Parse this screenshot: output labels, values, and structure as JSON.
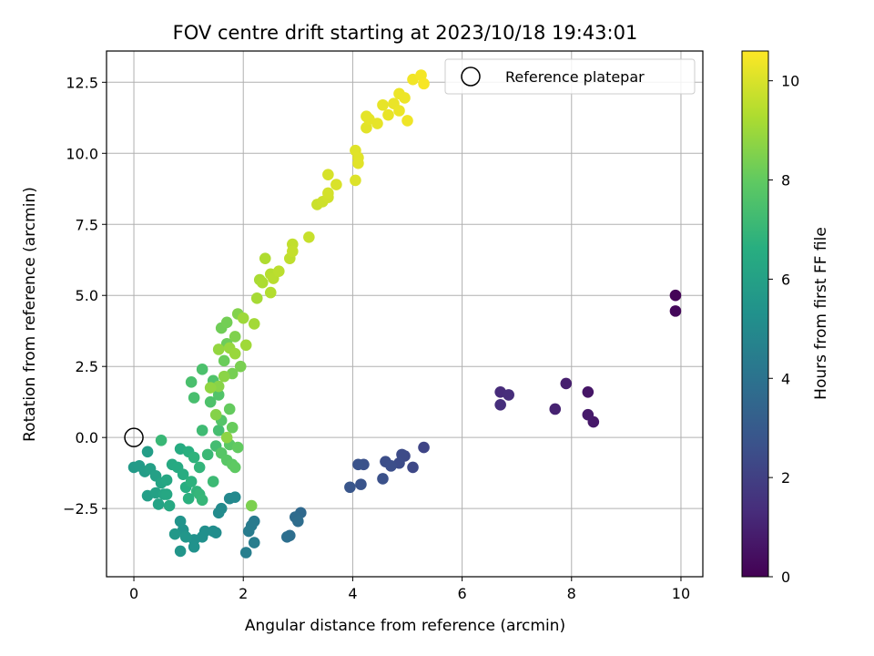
{
  "chart_data": {
    "type": "scatter",
    "title": "FOV centre drift starting at 2023/10/18 19:43:01",
    "xlabel": "Angular distance from reference (arcmin)",
    "ylabel": "Rotation from reference (arcmin)",
    "colorbar_label": "Hours from first FF file",
    "xlim": [
      -0.5,
      10.4
    ],
    "ylim": [
      -4.9,
      13.6
    ],
    "clim": [
      0,
      10.6
    ],
    "xticks": [
      0,
      2,
      4,
      6,
      8,
      10
    ],
    "xtick_labels": [
      "0",
      "2",
      "4",
      "6",
      "8",
      "10"
    ],
    "yticks": [
      -2.5,
      0.0,
      2.5,
      5.0,
      7.5,
      10.0,
      12.5
    ],
    "ytick_labels": [
      "−2.5",
      "0.0",
      "2.5",
      "5.0",
      "7.5",
      "10.0",
      "12.5"
    ],
    "cticks": [
      0,
      2,
      4,
      6,
      8,
      10
    ],
    "ctick_labels": [
      "0",
      "2",
      "4",
      "6",
      "8",
      "10"
    ],
    "grid": true,
    "colormap": "viridis",
    "legend": {
      "placement": "top-right",
      "entries": [
        {
          "label": "Reference platepar",
          "marker": "open-circle"
        }
      ]
    },
    "reference_point": {
      "x": 0,
      "y": 0
    },
    "points": [
      {
        "x": 9.9,
        "y": 5.0,
        "c": 0.1
      },
      {
        "x": 9.9,
        "y": 4.45,
        "c": 0.2
      },
      {
        "x": 8.3,
        "y": 1.6,
        "c": 0.6
      },
      {
        "x": 8.4,
        "y": 0.55,
        "c": 0.7
      },
      {
        "x": 8.3,
        "y": 0.8,
        "c": 0.75
      },
      {
        "x": 7.9,
        "y": 1.9,
        "c": 0.9
      },
      {
        "x": 7.7,
        "y": 1.0,
        "c": 1.0
      },
      {
        "x": 6.7,
        "y": 1.6,
        "c": 1.3
      },
      {
        "x": 6.85,
        "y": 1.5,
        "c": 1.35
      },
      {
        "x": 6.7,
        "y": 1.15,
        "c": 1.4
      },
      {
        "x": 5.3,
        "y": -0.35,
        "c": 2.2
      },
      {
        "x": 5.1,
        "y": -1.05,
        "c": 2.3
      },
      {
        "x": 4.95,
        "y": -0.65,
        "c": 2.35
      },
      {
        "x": 4.9,
        "y": -0.6,
        "c": 2.4
      },
      {
        "x": 4.85,
        "y": -0.9,
        "c": 2.45
      },
      {
        "x": 4.6,
        "y": -0.85,
        "c": 2.5
      },
      {
        "x": 4.7,
        "y": -1.0,
        "c": 2.55
      },
      {
        "x": 4.55,
        "y": -1.45,
        "c": 2.6
      },
      {
        "x": 4.2,
        "y": -0.95,
        "c": 2.65
      },
      {
        "x": 4.1,
        "y": -0.95,
        "c": 2.7
      },
      {
        "x": 4.15,
        "y": -1.65,
        "c": 2.75
      },
      {
        "x": 3.95,
        "y": -1.75,
        "c": 2.8
      },
      {
        "x": 3.05,
        "y": -2.65,
        "c": 3.6
      },
      {
        "x": 2.95,
        "y": -2.8,
        "c": 3.7
      },
      {
        "x": 3.0,
        "y": -2.95,
        "c": 3.75
      },
      {
        "x": 2.85,
        "y": -3.45,
        "c": 3.8
      },
      {
        "x": 2.8,
        "y": -3.5,
        "c": 3.85
      },
      {
        "x": 2.2,
        "y": -2.95,
        "c": 4.3
      },
      {
        "x": 2.15,
        "y": -3.1,
        "c": 4.35
      },
      {
        "x": 2.1,
        "y": -3.3,
        "c": 4.4
      },
      {
        "x": 2.2,
        "y": -3.7,
        "c": 4.45
      },
      {
        "x": 2.05,
        "y": -4.05,
        "c": 4.5
      },
      {
        "x": 1.75,
        "y": -2.15,
        "c": 4.9
      },
      {
        "x": 1.85,
        "y": -2.1,
        "c": 4.95
      },
      {
        "x": 1.6,
        "y": -2.5,
        "c": 5.0
      },
      {
        "x": 1.55,
        "y": -2.65,
        "c": 5.05
      },
      {
        "x": 1.5,
        "y": -3.35,
        "c": 5.1
      },
      {
        "x": 1.45,
        "y": -3.3,
        "c": 5.15
      },
      {
        "x": 1.3,
        "y": -3.3,
        "c": 5.2
      },
      {
        "x": 1.25,
        "y": -3.5,
        "c": 5.25
      },
      {
        "x": 1.1,
        "y": -3.6,
        "c": 5.3
      },
      {
        "x": 1.1,
        "y": -3.85,
        "c": 5.35
      },
      {
        "x": 0.9,
        "y": -3.25,
        "c": 5.4
      },
      {
        "x": 0.85,
        "y": -2.95,
        "c": 5.45
      },
      {
        "x": 0.85,
        "y": -4.0,
        "c": 5.5
      },
      {
        "x": 0.95,
        "y": -3.5,
        "c": 5.55
      },
      {
        "x": 0.75,
        "y": -3.4,
        "c": 5.6
      },
      {
        "x": 0.0,
        "y": -1.05,
        "c": 5.7
      },
      {
        "x": 0.1,
        "y": -1.0,
        "c": 5.75
      },
      {
        "x": 0.2,
        "y": -1.2,
        "c": 5.8
      },
      {
        "x": 0.25,
        "y": -0.5,
        "c": 5.85
      },
      {
        "x": 0.25,
        "y": -2.05,
        "c": 5.9
      },
      {
        "x": 0.3,
        "y": -1.1,
        "c": 5.95
      },
      {
        "x": 0.4,
        "y": -1.35,
        "c": 6.0
      },
      {
        "x": 0.4,
        "y": -1.95,
        "c": 6.05
      },
      {
        "x": 0.45,
        "y": -2.35,
        "c": 6.1
      },
      {
        "x": 0.5,
        "y": -1.6,
        "c": 6.15
      },
      {
        "x": 0.55,
        "y": -2.0,
        "c": 6.2
      },
      {
        "x": 0.6,
        "y": -1.5,
        "c": 6.25
      },
      {
        "x": 0.6,
        "y": -2.0,
        "c": 6.3
      },
      {
        "x": 0.65,
        "y": -2.4,
        "c": 6.35
      },
      {
        "x": 0.7,
        "y": -0.95,
        "c": 6.4
      },
      {
        "x": 0.8,
        "y": -1.05,
        "c": 6.45
      },
      {
        "x": 0.85,
        "y": -0.4,
        "c": 6.5
      },
      {
        "x": 0.9,
        "y": -1.3,
        "c": 6.55
      },
      {
        "x": 0.95,
        "y": -1.75,
        "c": 6.6
      },
      {
        "x": 1.0,
        "y": -0.5,
        "c": 6.65
      },
      {
        "x": 1.0,
        "y": -2.15,
        "c": 6.7
      },
      {
        "x": 1.05,
        "y": -1.55,
        "c": 6.75
      },
      {
        "x": 1.1,
        "y": -0.7,
        "c": 6.8
      },
      {
        "x": 1.15,
        "y": -1.9,
        "c": 6.85
      },
      {
        "x": 1.2,
        "y": -1.05,
        "c": 6.9
      },
      {
        "x": 1.2,
        "y": -2.0,
        "c": 6.95
      },
      {
        "x": 1.25,
        "y": -2.2,
        "c": 7.0
      },
      {
        "x": 0.5,
        "y": -0.1,
        "c": 7.05
      },
      {
        "x": 1.35,
        "y": -0.6,
        "c": 7.1
      },
      {
        "x": 1.45,
        "y": -1.55,
        "c": 7.15
      },
      {
        "x": 1.25,
        "y": 0.25,
        "c": 7.2
      },
      {
        "x": 1.5,
        "y": -0.3,
        "c": 7.3
      },
      {
        "x": 1.55,
        "y": 0.25,
        "c": 7.35
      },
      {
        "x": 1.1,
        "y": 1.4,
        "c": 7.4
      },
      {
        "x": 1.05,
        "y": 1.95,
        "c": 7.45
      },
      {
        "x": 1.25,
        "y": 2.4,
        "c": 7.5
      },
      {
        "x": 1.4,
        "y": 1.25,
        "c": 7.55
      },
      {
        "x": 1.45,
        "y": 2.0,
        "c": 7.6
      },
      {
        "x": 1.55,
        "y": 1.5,
        "c": 7.65
      },
      {
        "x": 1.6,
        "y": 0.6,
        "c": 7.7
      },
      {
        "x": 1.6,
        "y": -0.55,
        "c": 7.75
      },
      {
        "x": 1.7,
        "y": -0.8,
        "c": 7.8
      },
      {
        "x": 1.75,
        "y": -0.25,
        "c": 7.85
      },
      {
        "x": 1.8,
        "y": -0.95,
        "c": 7.9
      },
      {
        "x": 1.85,
        "y": -1.05,
        "c": 7.95
      },
      {
        "x": 1.9,
        "y": -0.35,
        "c": 8.0
      },
      {
        "x": 1.75,
        "y": 1.0,
        "c": 8.05
      },
      {
        "x": 1.8,
        "y": 0.35,
        "c": 8.1
      },
      {
        "x": 1.65,
        "y": 2.7,
        "c": 8.15
      },
      {
        "x": 1.7,
        "y": 3.3,
        "c": 8.2
      },
      {
        "x": 1.6,
        "y": 3.85,
        "c": 8.25
      },
      {
        "x": 1.7,
        "y": 4.05,
        "c": 8.3
      },
      {
        "x": 1.8,
        "y": 2.25,
        "c": 8.35
      },
      {
        "x": 1.95,
        "y": 2.5,
        "c": 8.4
      },
      {
        "x": 2.15,
        "y": -2.4,
        "c": 8.45
      },
      {
        "x": 1.85,
        "y": 3.55,
        "c": 8.5
      },
      {
        "x": 1.9,
        "y": 4.35,
        "c": 8.55
      },
      {
        "x": 1.5,
        "y": 0.8,
        "c": 8.6
      },
      {
        "x": 1.55,
        "y": 1.8,
        "c": 8.65
      },
      {
        "x": 1.65,
        "y": 2.15,
        "c": 8.7
      },
      {
        "x": 1.7,
        "y": 0.0,
        "c": 8.75
      },
      {
        "x": 1.4,
        "y": 1.75,
        "c": 8.8
      },
      {
        "x": 1.55,
        "y": 3.1,
        "c": 8.85
      },
      {
        "x": 1.75,
        "y": 3.15,
        "c": 8.9
      },
      {
        "x": 1.85,
        "y": 2.95,
        "c": 8.95
      },
      {
        "x": 2.0,
        "y": 4.2,
        "c": 9.0
      },
      {
        "x": 2.05,
        "y": 3.25,
        "c": 9.05
      },
      {
        "x": 2.2,
        "y": 4.0,
        "c": 9.1
      },
      {
        "x": 2.25,
        "y": 4.9,
        "c": 9.15
      },
      {
        "x": 2.3,
        "y": 5.55,
        "c": 9.2
      },
      {
        "x": 2.35,
        "y": 5.45,
        "c": 9.25
      },
      {
        "x": 2.4,
        "y": 6.3,
        "c": 9.3
      },
      {
        "x": 2.5,
        "y": 5.1,
        "c": 9.35
      },
      {
        "x": 2.5,
        "y": 5.75,
        "c": 9.4
      },
      {
        "x": 2.55,
        "y": 5.6,
        "c": 9.45
      },
      {
        "x": 2.65,
        "y": 5.85,
        "c": 9.5
      },
      {
        "x": 2.85,
        "y": 6.3,
        "c": 9.55
      },
      {
        "x": 2.9,
        "y": 6.8,
        "c": 9.6
      },
      {
        "x": 2.9,
        "y": 6.55,
        "c": 9.65
      },
      {
        "x": 3.2,
        "y": 7.05,
        "c": 9.7
      },
      {
        "x": 3.35,
        "y": 8.2,
        "c": 9.75
      },
      {
        "x": 3.45,
        "y": 8.3,
        "c": 9.8
      },
      {
        "x": 3.55,
        "y": 8.45,
        "c": 9.85
      },
      {
        "x": 3.55,
        "y": 8.6,
        "c": 9.9
      },
      {
        "x": 3.55,
        "y": 9.25,
        "c": 9.95
      },
      {
        "x": 3.7,
        "y": 8.9,
        "c": 10.0
      },
      {
        "x": 4.05,
        "y": 9.05,
        "c": 10.05
      },
      {
        "x": 4.05,
        "y": 10.1,
        "c": 10.1
      },
      {
        "x": 4.1,
        "y": 9.85,
        "c": 10.12
      },
      {
        "x": 4.1,
        "y": 9.65,
        "c": 10.14
      },
      {
        "x": 4.25,
        "y": 10.9,
        "c": 10.16
      },
      {
        "x": 4.25,
        "y": 11.3,
        "c": 10.18
      },
      {
        "x": 4.3,
        "y": 11.2,
        "c": 10.2
      },
      {
        "x": 4.45,
        "y": 11.05,
        "c": 10.22
      },
      {
        "x": 4.55,
        "y": 11.7,
        "c": 10.24
      },
      {
        "x": 4.65,
        "y": 11.35,
        "c": 10.26
      },
      {
        "x": 4.75,
        "y": 11.75,
        "c": 10.28
      },
      {
        "x": 4.85,
        "y": 11.5,
        "c": 10.3
      },
      {
        "x": 4.85,
        "y": 12.1,
        "c": 10.32
      },
      {
        "x": 4.95,
        "y": 11.95,
        "c": 10.34
      },
      {
        "x": 5.0,
        "y": 11.15,
        "c": 10.36
      },
      {
        "x": 5.1,
        "y": 12.6,
        "c": 10.4
      },
      {
        "x": 5.25,
        "y": 12.75,
        "c": 10.45
      },
      {
        "x": 5.3,
        "y": 12.45,
        "c": 10.5
      }
    ]
  }
}
